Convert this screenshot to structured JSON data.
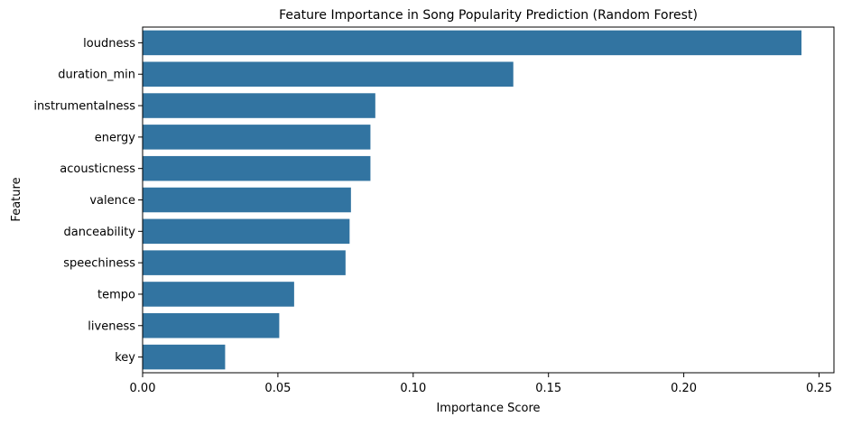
{
  "chart_data": {
    "type": "bar",
    "orientation": "horizontal",
    "title": "Feature Importance in Song Popularity Prediction (Random Forest)",
    "xlabel": "Importance Score",
    "ylabel": "Feature",
    "categories": [
      "loudness",
      "duration_min",
      "instrumentalness",
      "energy",
      "acousticness",
      "valence",
      "danceability",
      "speechiness",
      "tempo",
      "liveness",
      "key"
    ],
    "values": [
      0.2435,
      0.137,
      0.086,
      0.0842,
      0.0842,
      0.077,
      0.0765,
      0.075,
      0.056,
      0.0505,
      0.0305
    ],
    "xlim": [
      0,
      0.2555
    ],
    "xticks": [
      0.0,
      0.05,
      0.1,
      0.15,
      0.2,
      0.25
    ],
    "xtick_labels": [
      "0.00",
      "0.05",
      "0.10",
      "0.15",
      "0.20",
      "0.25"
    ],
    "grid": false,
    "legend": "none",
    "bar_color": "#3274a1"
  }
}
